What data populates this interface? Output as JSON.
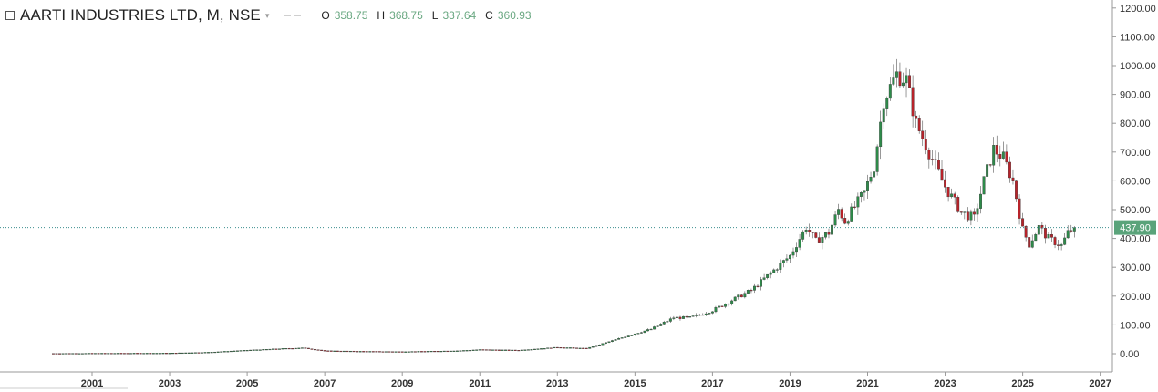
{
  "legend": {
    "symbol": "AARTI INDUSTRIES LTD, M, NSE",
    "open_label": "O",
    "open": "358.75",
    "high_label": "H",
    "high": "368.75",
    "low_label": "L",
    "low": "337.64",
    "close_label": "C",
    "close": "360.93"
  },
  "colors": {
    "up": "#2e8b4a",
    "down": "#b8232a",
    "price_line": "#3d8f8f",
    "price_label_bg": "#5aa37a",
    "grid_axis": "#999999"
  },
  "chart_data": {
    "type": "candlestick",
    "title": "AARTI INDUSTRIES LTD, M, NSE",
    "interval": "monthly",
    "exchange": "NSE",
    "xlabel": "",
    "ylabel": "",
    "x_ticks": [
      "2001",
      "2003",
      "2005",
      "2007",
      "2009",
      "2011",
      "2013",
      "2015",
      "2017",
      "2019",
      "2021",
      "2023",
      "2025",
      "2027"
    ],
    "y_ticks": [
      "0.00",
      "100.00",
      "200.00",
      "300.00",
      "400.00",
      "500.00",
      "600.00",
      "700.00",
      "800.00",
      "900.00",
      "1000.00",
      "1100.00",
      "1200.00"
    ],
    "ylim": [
      0,
      1200
    ],
    "xlim": [
      "2000-01",
      "2027-06"
    ],
    "y_axis_position": "right",
    "grid": false,
    "current_price": "437.90",
    "price_path": [
      [
        "2000-01",
        1
      ],
      [
        "2003-01",
        2
      ],
      [
        "2004-01",
        5
      ],
      [
        "2005-01",
        12
      ],
      [
        "2006-01",
        18
      ],
      [
        "2006-06",
        20
      ],
      [
        "2007-01",
        10
      ],
      [
        "2008-01",
        8
      ],
      [
        "2009-01",
        7
      ],
      [
        "2010-06",
        10
      ],
      [
        "2011-01",
        14
      ],
      [
        "2012-01",
        12
      ],
      [
        "2013-01",
        22
      ],
      [
        "2013-10",
        18
      ],
      [
        "2014-06",
        45
      ],
      [
        "2015-01",
        70
      ],
      [
        "2015-06",
        85
      ],
      [
        "2016-01",
        125
      ],
      [
        "2016-06",
        125
      ],
      [
        "2017-01",
        150
      ],
      [
        "2017-06",
        180
      ],
      [
        "2018-01",
        220
      ],
      [
        "2018-06",
        270
      ],
      [
        "2019-01",
        340
      ],
      [
        "2019-06",
        440
      ],
      [
        "2019-09",
        390
      ],
      [
        "2020-01",
        420
      ],
      [
        "2020-04",
        500
      ],
      [
        "2020-06",
        460
      ],
      [
        "2020-12",
        560
      ],
      [
        "2021-03",
        650
      ],
      [
        "2021-06",
        880
      ],
      [
        "2021-10",
        970
      ],
      [
        "2022-01",
        950
      ],
      [
        "2022-04",
        800
      ],
      [
        "2022-08",
        700
      ],
      [
        "2023-01",
        580
      ],
      [
        "2023-06",
        490
      ],
      [
        "2023-10",
        470
      ],
      [
        "2024-01",
        600
      ],
      [
        "2024-04",
        710
      ],
      [
        "2024-07",
        680
      ],
      [
        "2024-10",
        600
      ],
      [
        "2025-01",
        430
      ],
      [
        "2025-03",
        380
      ],
      [
        "2025-06",
        440
      ],
      [
        "2025-09",
        400
      ],
      [
        "2026-01",
        375
      ],
      [
        "2026-03",
        420
      ],
      [
        "2026-05",
        438
      ]
    ]
  }
}
